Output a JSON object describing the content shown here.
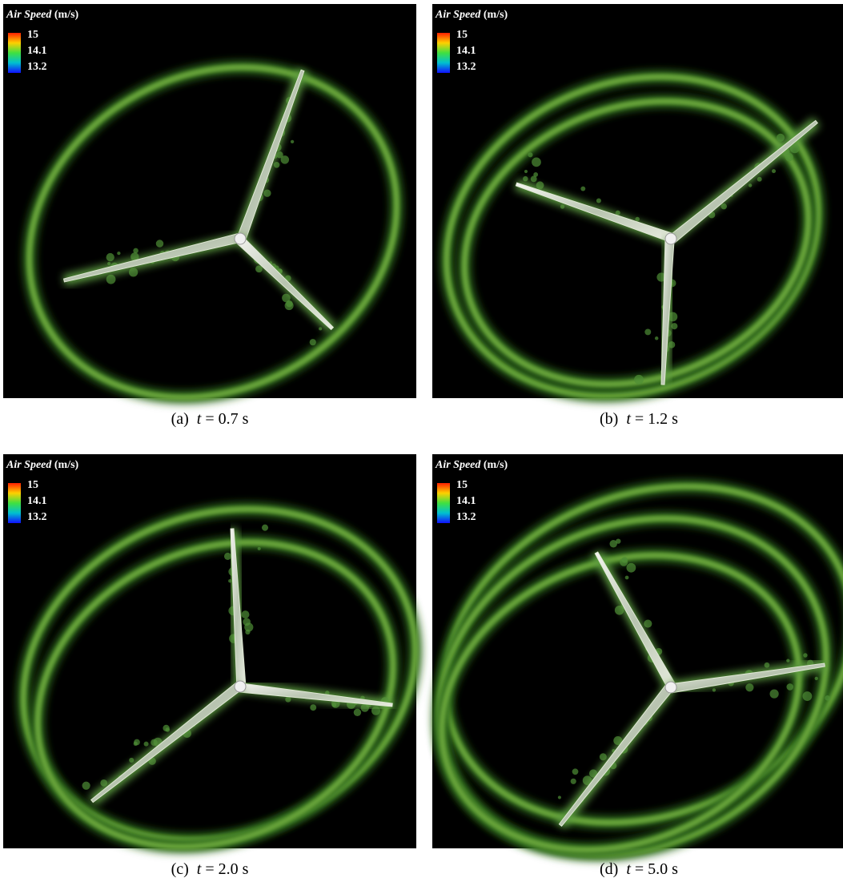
{
  "panels": [
    {
      "legend": {
        "quantity": "Air Speed",
        "unit": "(m/s)",
        "labels": [
          "15",
          "14.1",
          "13.2"
        ]
      },
      "caption": {
        "label": "(a)",
        "variable": "t",
        "rest": "= 0.7 s"
      }
    },
    {
      "legend": {
        "quantity": "Air Speed",
        "unit": "(m/s)",
        "labels": [
          "15",
          "14.1",
          "13.2"
        ]
      },
      "caption": {
        "label": "(b)",
        "variable": "t",
        "rest": "= 1.2 s"
      }
    },
    {
      "legend": {
        "quantity": "Air Speed",
        "unit": "(m/s)",
        "labels": [
          "15",
          "14.1",
          "13.2"
        ]
      },
      "caption": {
        "label": "(c)",
        "variable": "t",
        "rest": "= 2.0 s"
      }
    },
    {
      "legend": {
        "quantity": "Air Speed",
        "unit": "(m/s)",
        "labels": [
          "15",
          "14.1",
          "13.2"
        ]
      },
      "caption": {
        "label": "(d)",
        "variable": "t",
        "rest": "= 5.0 s"
      }
    }
  ]
}
